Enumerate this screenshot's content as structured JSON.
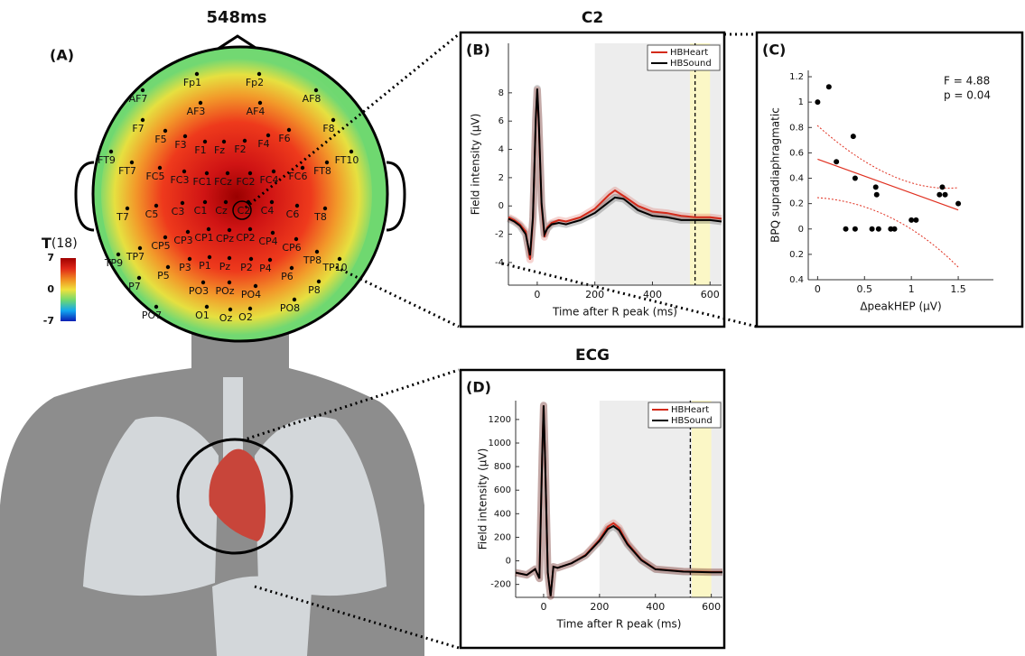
{
  "chart_data": [
    {
      "type": "topomap",
      "panel": "(A)",
      "title": "548ms",
      "colorbar_title": "T",
      "colorbar_subtitle": "(18)",
      "clim": [
        -7,
        7
      ],
      "colorbar_ticks": [
        7,
        0,
        -7
      ],
      "colormap": [
        "#0a1eb4",
        "#12a6f0",
        "#6fd870",
        "#f0e23c",
        "#f08a20",
        "#e02818",
        "#a00000"
      ],
      "electrodes": [
        "Fp1",
        "Fp2",
        "AF7",
        "AF3",
        "AF4",
        "AF8",
        "F7",
        "F5",
        "F3",
        "F1",
        "Fz",
        "F2",
        "F4",
        "F6",
        "F8",
        "FT9",
        "FT7",
        "FC5",
        "FC3",
        "FC1",
        "FCz",
        "FC2",
        "FC4",
        "FC6",
        "FT8",
        "FT10",
        "T7",
        "C5",
        "C3",
        "C1",
        "Cz",
        "C2",
        "C4",
        "C6",
        "T8",
        "TP7",
        "CP5",
        "CP3",
        "CP1",
        "CPz",
        "CP2",
        "CP4",
        "CP6",
        "TP8",
        "TP9",
        "TP10",
        "P7",
        "P5",
        "P3",
        "P1",
        "Pz",
        "P2",
        "P4",
        "P6",
        "P8",
        "PO3",
        "POz",
        "PO4",
        "PO7",
        "PO8",
        "O1",
        "Oz",
        "O2"
      ]
    },
    {
      "type": "line",
      "panel": "(B)",
      "title": "C2",
      "xlabel": "Time after R peak (ms)",
      "ylabel": "Field intensity (µV)",
      "x": [
        -100,
        -80,
        -60,
        -40,
        -25,
        -15,
        -5,
        0,
        5,
        15,
        25,
        35,
        50,
        75,
        100,
        150,
        200,
        250,
        270,
        300,
        350,
        400,
        450,
        500,
        550,
        600,
        640
      ],
      "series": [
        {
          "name": "HBHeart",
          "color": "#d42a1a",
          "values": [
            -0.8,
            -1,
            -1.3,
            -1.8,
            -3.8,
            -1,
            6,
            8.2,
            6,
            0,
            -2.2,
            -1.5,
            -1.2,
            -1,
            -1.1,
            -0.8,
            -0.2,
            0.8,
            1.1,
            0.7,
            0,
            -0.4,
            -0.5,
            -0.7,
            -0.8,
            -0.8,
            -0.9
          ]
        },
        {
          "name": "HBSound",
          "color": "#000000",
          "values": [
            -0.9,
            -1.1,
            -1.4,
            -2,
            -3.5,
            -0.8,
            6.2,
            8.3,
            6.2,
            0.2,
            -2,
            -1.6,
            -1.3,
            -1.2,
            -1.3,
            -1,
            -0.5,
            0.3,
            0.6,
            0.5,
            -0.3,
            -0.7,
            -0.8,
            -1,
            -1,
            -1,
            -1.1
          ]
        }
      ],
      "xlim": [
        -100,
        640
      ],
      "ylim": [
        -5.6,
        11.5
      ],
      "xticks": [
        0,
        200,
        400,
        600
      ],
      "yticks": [
        -4,
        -2,
        0,
        2,
        4,
        6,
        8
      ],
      "shaded_x": [
        200,
        640
      ],
      "highlight_x": [
        530,
        600
      ],
      "dashed_x": 548,
      "legend": "upper right"
    },
    {
      "type": "scatter",
      "panel": "(C)",
      "xlabel": "ΔpeakHEP (µV)",
      "ylabel": "BPQ supradiaphragmatic",
      "x": [
        0,
        0.12,
        0.2,
        0.38,
        0.4,
        0.3,
        0.4,
        0.58,
        0.65,
        0.62,
        0.63,
        0.78,
        0.82,
        1,
        1.05,
        1.3,
        1.33,
        1.36,
        1.5
      ],
      "values": [
        1,
        1.12,
        0.53,
        0.73,
        0.4,
        0,
        0,
        0,
        0,
        0.33,
        0.27,
        0,
        0,
        0.07,
        0.07,
        0.27,
        0.33,
        0.27,
        0.2
      ],
      "color": "#000000",
      "fit": {
        "x": [
          0,
          1.5
        ],
        "y": [
          0.55,
          0.15
        ],
        "color": "#e03020"
      },
      "annotations": [
        "F = 4.88",
        "p = 0.04"
      ],
      "xlim": [
        -0.1,
        1.875
      ],
      "ylim": [
        -0.4,
        1.25
      ],
      "xticks": [
        0,
        0.5,
        1,
        1.5
      ],
      "yticks": [
        {
          "value": -0.4,
          "label": "0.4"
        },
        {
          "value": -0.2,
          "label": "0.2"
        },
        0,
        0.2,
        0.4,
        0.6,
        0.8,
        1,
        1.2
      ]
    },
    {
      "type": "line",
      "panel": "(D)",
      "title": "ECG",
      "xlabel": "Time after R peak (ms)",
      "ylabel": "Field intensity (µV)",
      "x": [
        -100,
        -60,
        -30,
        -15,
        -5,
        0,
        5,
        15,
        25,
        35,
        50,
        100,
        150,
        200,
        230,
        250,
        270,
        300,
        350,
        400,
        500,
        600,
        640
      ],
      "series": [
        {
          "name": "HBHeart",
          "color": "#d42a1a",
          "values": [
            -100,
            -120,
            -70,
            -150,
            900,
            1320,
            900,
            -100,
            -300,
            -50,
            -60,
            -20,
            50,
            180,
            290,
            320,
            280,
            150,
            10,
            -70,
            -90,
            -95,
            -95
          ]
        },
        {
          "name": "HBSound",
          "color": "#000000",
          "values": [
            -100,
            -120,
            -70,
            -150,
            900,
            1320,
            900,
            -100,
            -300,
            -50,
            -60,
            -20,
            45,
            170,
            270,
            295,
            260,
            140,
            5,
            -72,
            -92,
            -97,
            -97
          ]
        }
      ],
      "xlim": [
        -100,
        640
      ],
      "ylim": [
        -310,
        1360
      ],
      "xticks": [
        0,
        200,
        400,
        600
      ],
      "yticks": [
        -200,
        0,
        200,
        400,
        600,
        800,
        1000,
        1200
      ],
      "shaded_x": [
        200,
        640
      ],
      "highlight_x": [
        530,
        600
      ],
      "dashed_x": 525,
      "legend": "upper right"
    }
  ]
}
